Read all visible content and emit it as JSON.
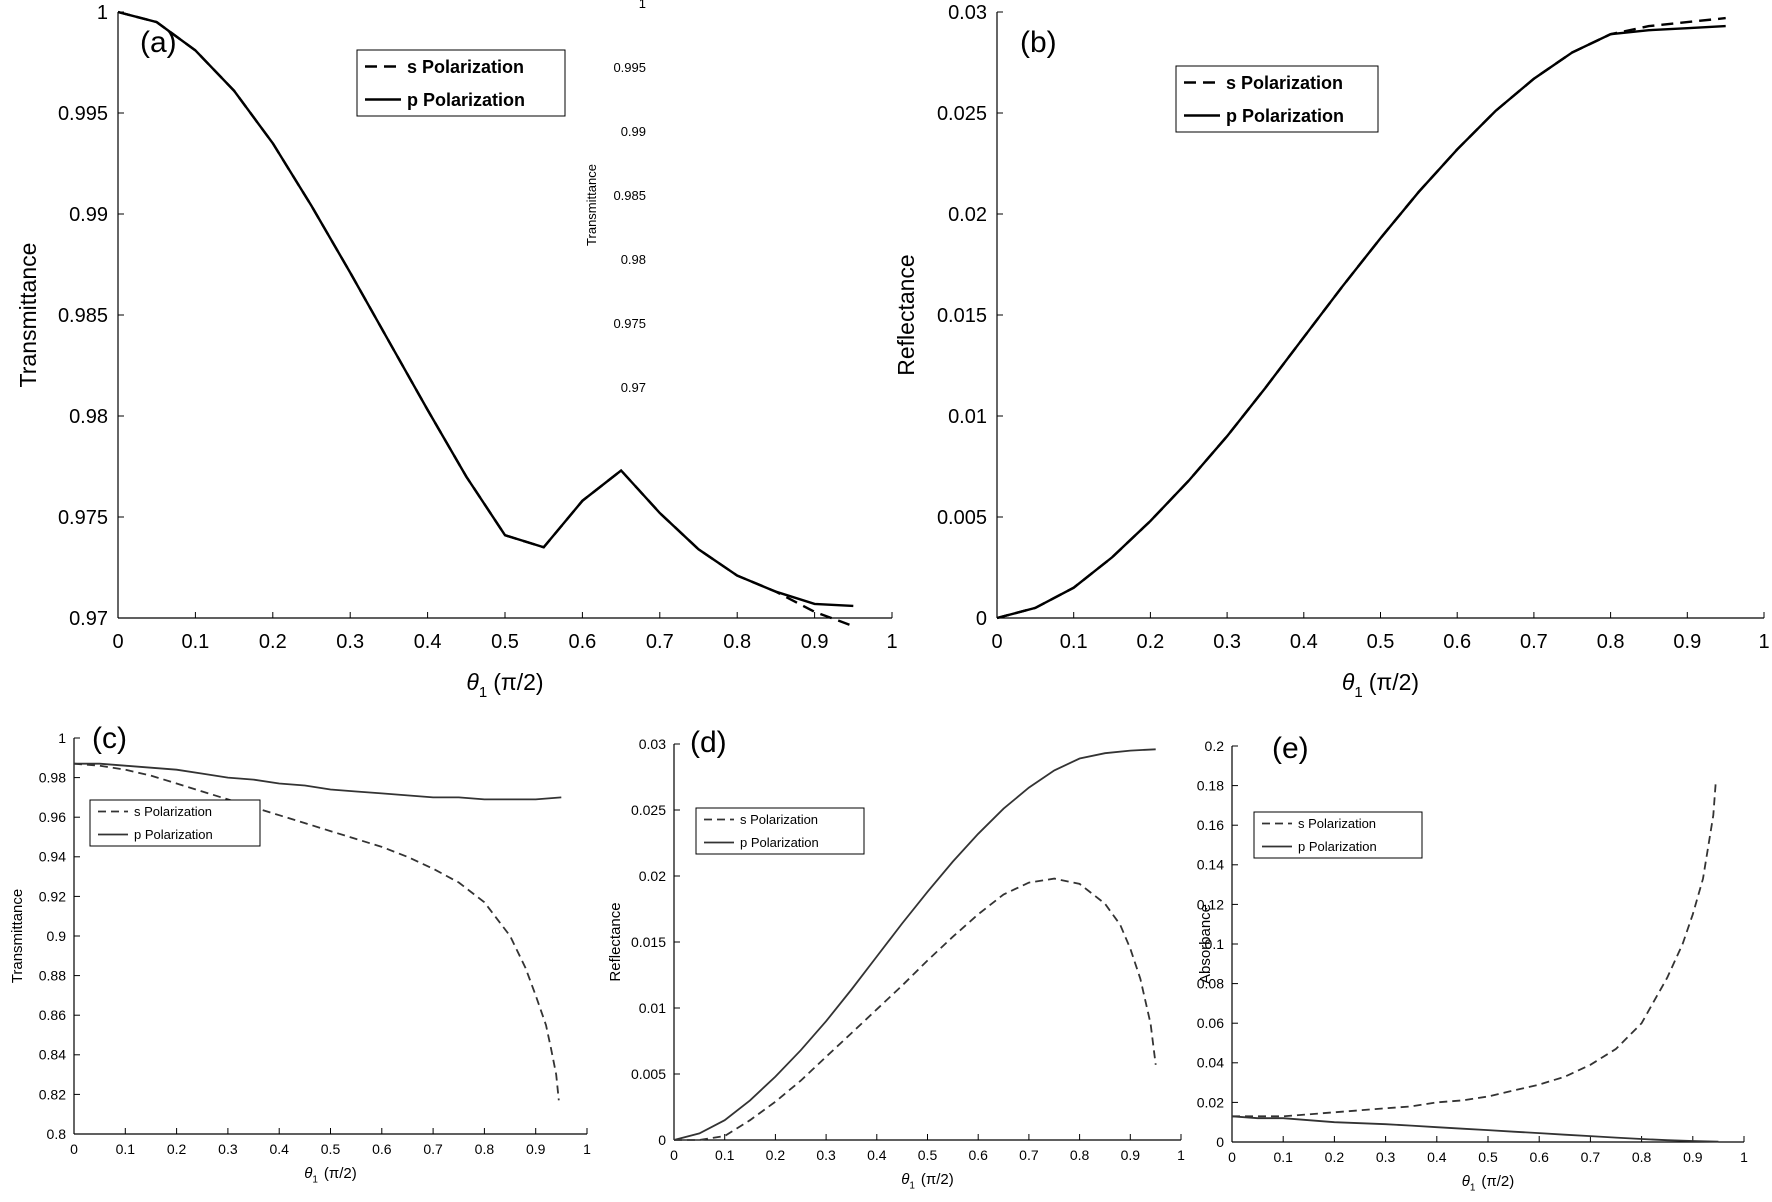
{
  "chart_data": [
    {
      "id": "a",
      "type": "line",
      "panel_label": "(a)",
      "xlabel": "θ",
      "xlabel_sub": "1",
      "xlabel_unit": "(π/2)",
      "ylabel": "Transmittance",
      "xlim": [
        0,
        1
      ],
      "ylim": [
        0.97,
        1
      ],
      "xticks": [
        0,
        0.1,
        0.2,
        0.3,
        0.4,
        0.5,
        0.6,
        0.7,
        0.8,
        0.9,
        1
      ],
      "xtick_labels": [
        "0",
        "0.1",
        "0.2",
        "0.3",
        "0.4",
        "0.5",
        "0.6",
        "0.7",
        "0.8",
        "0.9",
        "1"
      ],
      "yticks": [
        0.97,
        0.975,
        0.98,
        0.985,
        0.99,
        0.995,
        1
      ],
      "ytick_labels": [
        "0.97",
        "0.975",
        "0.98",
        "0.985",
        "0.99",
        "0.995",
        "1"
      ],
      "legend": [
        "s Polarization",
        "p Polarization"
      ],
      "series": [
        {
          "name": "s Polarization",
          "style": "dashed",
          "x": [
            0,
            0.05,
            0.1,
            0.15,
            0.2,
            0.25,
            0.3,
            0.35,
            0.4,
            0.45,
            0.5,
            0.55,
            0.6,
            0.65,
            0.7,
            0.75,
            0.8,
            0.85,
            0.9,
            0.95
          ],
          "y": [
            1.0,
            0.9995,
            0.9981,
            0.9961,
            0.9935,
            0.9904,
            0.9871,
            0.9837,
            0.9803,
            0.977,
            0.9741,
            0.9735,
            0.9758,
            0.9773,
            0.9752,
            0.9734,
            0.9721,
            0.9713,
            0.9703,
            0.9696
          ]
        },
        {
          "name": "p Polarization",
          "style": "solid",
          "x": [
            0,
            0.05,
            0.1,
            0.15,
            0.2,
            0.25,
            0.3,
            0.35,
            0.4,
            0.45,
            0.5,
            0.55,
            0.6,
            0.65,
            0.7,
            0.75,
            0.8,
            0.85,
            0.9,
            0.95
          ],
          "y": [
            1.0,
            0.9995,
            0.9981,
            0.9961,
            0.9935,
            0.9904,
            0.9871,
            0.9837,
            0.9803,
            0.977,
            0.9741,
            0.9735,
            0.9758,
            0.9773,
            0.9752,
            0.9734,
            0.9721,
            0.9713,
            0.9707,
            0.9706
          ]
        }
      ],
      "ghost_ylabel": "Transmittance",
      "ghost_ticks": [
        "1",
        "0.995",
        "0.99",
        "0.985",
        "0.98",
        "0.975",
        "0.97"
      ]
    },
    {
      "id": "b",
      "type": "line",
      "panel_label": "(b)",
      "xlabel": "θ",
      "xlabel_sub": "1",
      "xlabel_unit": "(π/2)",
      "ylabel": "Reflectance",
      "xlim": [
        0,
        1
      ],
      "ylim": [
        0,
        0.03
      ],
      "xticks": [
        0,
        0.1,
        0.2,
        0.3,
        0.4,
        0.5,
        0.6,
        0.7,
        0.8,
        0.9,
        1
      ],
      "xtick_labels": [
        "0",
        "0.1",
        "0.2",
        "0.3",
        "0.4",
        "0.5",
        "0.6",
        "0.7",
        "0.8",
        "0.9",
        "1"
      ],
      "yticks": [
        0,
        0.005,
        0.01,
        0.015,
        0.02,
        0.025,
        0.03
      ],
      "ytick_labels": [
        "0",
        "0.005",
        "0.01",
        "0.015",
        "0.02",
        "0.025",
        "0.03"
      ],
      "legend": [
        "s Polarization",
        "p Polarization"
      ],
      "series": [
        {
          "name": "s Polarization",
          "style": "dashed",
          "x": [
            0,
            0.05,
            0.1,
            0.15,
            0.2,
            0.25,
            0.3,
            0.35,
            0.4,
            0.45,
            0.5,
            0.55,
            0.6,
            0.65,
            0.7,
            0.75,
            0.8,
            0.85,
            0.9,
            0.95
          ],
          "y": [
            0,
            0.0005,
            0.0015,
            0.003,
            0.0048,
            0.0068,
            0.009,
            0.0114,
            0.0139,
            0.0164,
            0.0188,
            0.0211,
            0.0232,
            0.0251,
            0.0267,
            0.028,
            0.0289,
            0.0293,
            0.0295,
            0.0297
          ]
        },
        {
          "name": "p Polarization",
          "style": "solid",
          "x": [
            0,
            0.05,
            0.1,
            0.15,
            0.2,
            0.25,
            0.3,
            0.35,
            0.4,
            0.45,
            0.5,
            0.55,
            0.6,
            0.65,
            0.7,
            0.75,
            0.8,
            0.85,
            0.9,
            0.95
          ],
          "y": [
            0,
            0.0005,
            0.0015,
            0.003,
            0.0048,
            0.0068,
            0.009,
            0.0114,
            0.0139,
            0.0164,
            0.0188,
            0.0211,
            0.0232,
            0.0251,
            0.0267,
            0.028,
            0.0289,
            0.0291,
            0.0292,
            0.0293
          ]
        }
      ]
    },
    {
      "id": "c",
      "type": "line",
      "panel_label": "(c)",
      "xlabel": "θ",
      "xlabel_sub": "1",
      "xlabel_unit": "(π/2)",
      "ylabel": "Transmittance",
      "xlim": [
        0,
        1
      ],
      "ylim": [
        0.8,
        1
      ],
      "xticks": [
        0,
        0.1,
        0.2,
        0.3,
        0.4,
        0.5,
        0.6,
        0.7,
        0.8,
        0.9,
        1
      ],
      "xtick_labels": [
        "0",
        "0.1",
        "0.2",
        "0.3",
        "0.4",
        "0.5",
        "0.6",
        "0.7",
        "0.8",
        "0.9",
        "1"
      ],
      "yticks": [
        0.8,
        0.82,
        0.84,
        0.86,
        0.88,
        0.9,
        0.92,
        0.94,
        0.96,
        0.98,
        1
      ],
      "ytick_labels": [
        "0.8",
        "0.82",
        "0.84",
        "0.86",
        "0.88",
        "0.9",
        "0.92",
        "0.94",
        "0.96",
        "0.98",
        "1"
      ],
      "legend": [
        "s Polarization",
        "p Polarization"
      ],
      "series": [
        {
          "name": "s Polarization",
          "style": "dashed",
          "x": [
            0,
            0.05,
            0.1,
            0.15,
            0.2,
            0.25,
            0.3,
            0.35,
            0.4,
            0.45,
            0.5,
            0.55,
            0.6,
            0.65,
            0.7,
            0.75,
            0.8,
            0.85,
            0.88,
            0.9,
            0.92,
            0.93,
            0.94,
            0.945
          ],
          "y": [
            0.987,
            0.986,
            0.984,
            0.981,
            0.977,
            0.973,
            0.969,
            0.965,
            0.961,
            0.957,
            0.953,
            0.949,
            0.945,
            0.94,
            0.934,
            0.927,
            0.917,
            0.9,
            0.884,
            0.87,
            0.855,
            0.843,
            0.83,
            0.817
          ]
        },
        {
          "name": "p Polarization",
          "style": "solid",
          "x": [
            0,
            0.05,
            0.1,
            0.15,
            0.2,
            0.25,
            0.3,
            0.35,
            0.4,
            0.45,
            0.5,
            0.55,
            0.6,
            0.65,
            0.7,
            0.75,
            0.8,
            0.85,
            0.9,
            0.95
          ],
          "y": [
            0.987,
            0.987,
            0.986,
            0.985,
            0.984,
            0.982,
            0.98,
            0.979,
            0.977,
            0.976,
            0.974,
            0.973,
            0.972,
            0.971,
            0.97,
            0.97,
            0.969,
            0.969,
            0.969,
            0.97
          ]
        }
      ]
    },
    {
      "id": "d",
      "type": "line",
      "panel_label": "(d)",
      "xlabel": "θ",
      "xlabel_sub": "1",
      "xlabel_unit": "(π/2)",
      "ylabel": "Reflectance",
      "xlim": [
        0,
        1
      ],
      "ylim": [
        0,
        0.03
      ],
      "xticks": [
        0,
        0.1,
        0.2,
        0.3,
        0.4,
        0.5,
        0.6,
        0.7,
        0.8,
        0.9,
        1
      ],
      "xtick_labels": [
        "0",
        "0.1",
        "0.2",
        "0.3",
        "0.4",
        "0.5",
        "0.6",
        "0.7",
        "0.8",
        "0.9",
        "1"
      ],
      "yticks": [
        0,
        0.005,
        0.01,
        0.015,
        0.02,
        0.025,
        0.03
      ],
      "ytick_labels": [
        "0",
        "0.005",
        "0.01",
        "0.015",
        "0.02",
        "0.025",
        "0.03"
      ],
      "legend": [
        "s Polarization",
        "p Polarization"
      ],
      "series": [
        {
          "name": "s Polarization",
          "style": "dashed",
          "x": [
            0,
            0.05,
            0.1,
            0.15,
            0.2,
            0.25,
            0.3,
            0.35,
            0.4,
            0.45,
            0.5,
            0.55,
            0.6,
            0.65,
            0.7,
            0.75,
            0.8,
            0.85,
            0.88,
            0.9,
            0.92,
            0.94,
            0.95
          ],
          "y": [
            0,
            0,
            0.0003,
            0.0015,
            0.0029,
            0.0045,
            0.0063,
            0.0081,
            0.0099,
            0.0117,
            0.0136,
            0.0154,
            0.0171,
            0.0186,
            0.0195,
            0.0198,
            0.0194,
            0.0179,
            0.0163,
            0.0145,
            0.0122,
            0.0088,
            0.0057
          ]
        },
        {
          "name": "p Polarization",
          "style": "solid",
          "x": [
            0,
            0.05,
            0.1,
            0.15,
            0.2,
            0.25,
            0.3,
            0.35,
            0.4,
            0.45,
            0.5,
            0.55,
            0.6,
            0.65,
            0.7,
            0.75,
            0.8,
            0.85,
            0.9,
            0.95
          ],
          "y": [
            0,
            0.0005,
            0.0015,
            0.003,
            0.0048,
            0.0068,
            0.009,
            0.0114,
            0.0139,
            0.0164,
            0.0188,
            0.0211,
            0.0232,
            0.0251,
            0.0267,
            0.028,
            0.0289,
            0.0293,
            0.0295,
            0.0296
          ]
        }
      ]
    },
    {
      "id": "e",
      "type": "line",
      "panel_label": "(e)",
      "xlabel": "θ",
      "xlabel_sub": "1",
      "xlabel_unit": "(π/2)",
      "ylabel": "Absorbance",
      "xlim": [
        0,
        1
      ],
      "ylim": [
        0,
        0.2
      ],
      "xticks": [
        0,
        0.1,
        0.2,
        0.3,
        0.4,
        0.5,
        0.6,
        0.7,
        0.8,
        0.9,
        1
      ],
      "xtick_labels": [
        "0",
        "0.1",
        "0.2",
        "0.3",
        "0.4",
        "0.5",
        "0.6",
        "0.7",
        "0.8",
        "0.9",
        "1"
      ],
      "yticks": [
        0,
        0.02,
        0.04,
        0.06,
        0.08,
        0.1,
        0.12,
        0.14,
        0.16,
        0.18,
        0.2
      ],
      "ytick_labels": [
        "0",
        "0.02",
        "0.04",
        "0.06",
        "0.08",
        "0.1",
        "0.12",
        "0.14",
        "0.16",
        "0.18",
        "0.2"
      ],
      "legend": [
        "s Polarization",
        "p Polarization"
      ],
      "series": [
        {
          "name": "s Polarization",
          "style": "dashed",
          "x": [
            0,
            0.05,
            0.1,
            0.15,
            0.2,
            0.25,
            0.3,
            0.35,
            0.4,
            0.45,
            0.5,
            0.55,
            0.6,
            0.65,
            0.7,
            0.75,
            0.8,
            0.85,
            0.88,
            0.9,
            0.92,
            0.94,
            0.945
          ],
          "y": [
            0.013,
            0.013,
            0.013,
            0.014,
            0.015,
            0.016,
            0.017,
            0.018,
            0.02,
            0.021,
            0.023,
            0.026,
            0.029,
            0.033,
            0.039,
            0.047,
            0.06,
            0.083,
            0.1,
            0.115,
            0.133,
            0.165,
            0.182
          ]
        },
        {
          "name": "p Polarization",
          "style": "solid",
          "x": [
            0,
            0.05,
            0.1,
            0.15,
            0.2,
            0.25,
            0.3,
            0.35,
            0.4,
            0.45,
            0.5,
            0.55,
            0.6,
            0.65,
            0.7,
            0.75,
            0.8,
            0.85,
            0.9,
            0.95
          ],
          "y": [
            0.013,
            0.012,
            0.012,
            0.011,
            0.01,
            0.0095,
            0.009,
            0.0083,
            0.0075,
            0.0067,
            0.006,
            0.0052,
            0.0045,
            0.0037,
            0.003,
            0.0022,
            0.0015,
            0.0009,
            0.0005,
            0.0002
          ]
        }
      ]
    }
  ]
}
